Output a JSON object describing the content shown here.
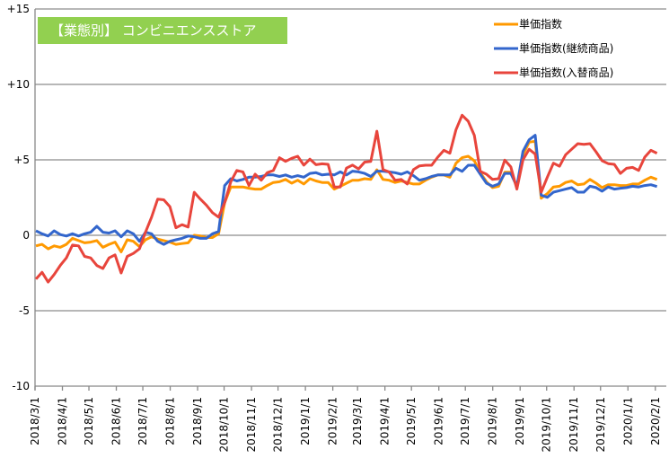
{
  "chart_data": {
    "type": "line",
    "title": "【業態別】 コンビニエンスストア",
    "xlabel": "",
    "ylabel": "",
    "ylim": [
      -10,
      15
    ],
    "yticks": [
      "+15",
      "+10",
      "+5",
      "0",
      "-5",
      "-10"
    ],
    "ytick_values": [
      15,
      10,
      5,
      0,
      -5,
      -10
    ],
    "x_start": "2018-03-01",
    "x_step_days": 7,
    "xtick_labels": [
      "2018/3/1",
      "2018/4/1",
      "2018/5/1",
      "2018/6/1",
      "2018/7/1",
      "2018/8/1",
      "2018/9/1",
      "2018/10/1",
      "2018/11/1",
      "2018/12/1",
      "2019/1/1",
      "2019/2/1",
      "2019/3/1",
      "2019/4/1",
      "2019/5/1",
      "2019/6/1",
      "2019/7/1",
      "2019/8/1",
      "2019/9/1",
      "2019/10/1",
      "2019/11/1",
      "2019/12/1",
      "2020/1/1",
      "2020/2/1"
    ],
    "grid": true,
    "legend_placement": "top-right",
    "series": [
      {
        "name": "単価指数",
        "color": "#FF9900",
        "values": [
          -0.7,
          -0.6,
          -0.9,
          -0.7,
          -0.8,
          -0.6,
          -0.2,
          -0.35,
          -0.5,
          -0.45,
          -0.35,
          -0.8,
          -0.6,
          -0.45,
          -1.1,
          -0.3,
          -0.4,
          -0.75,
          -0.3,
          -0.1,
          -0.25,
          -0.35,
          -0.45,
          -0.6,
          -0.55,
          -0.5,
          0.0,
          -0.05,
          -0.15,
          -0.15,
          0.1,
          2.16,
          3.2,
          3.2,
          3.2,
          3.12,
          3.06,
          3.06,
          3.3,
          3.5,
          3.55,
          3.7,
          3.45,
          3.65,
          3.4,
          3.75,
          3.6,
          3.5,
          3.5,
          3.06,
          3.25,
          3.45,
          3.65,
          3.65,
          3.75,
          3.7,
          4.34,
          3.7,
          3.65,
          3.5,
          3.6,
          3.5,
          3.4,
          3.4,
          3.65,
          3.85,
          4.0,
          4.0,
          3.85,
          4.78,
          5.14,
          5.24,
          4.94,
          4.15,
          3.55,
          3.16,
          3.25,
          4.18,
          4.18,
          3.2,
          5.34,
          6.17,
          6.23,
          2.46,
          2.76,
          3.2,
          3.25,
          3.5,
          3.6,
          3.35,
          3.4,
          3.7,
          3.45,
          3.16,
          3.35,
          3.35,
          3.3,
          3.3,
          3.4,
          3.4,
          3.65,
          3.85,
          3.7
        ]
      },
      {
        "name": "単価指数(継続商品)",
        "color": "#3366CC",
        "values": [
          0.3,
          0.1,
          -0.05,
          0.3,
          0.05,
          -0.05,
          0.1,
          -0.05,
          0.1,
          0.2,
          0.6,
          0.2,
          0.15,
          0.3,
          -0.1,
          0.3,
          0.1,
          -0.4,
          0.2,
          0.1,
          -0.4,
          -0.6,
          -0.4,
          -0.3,
          -0.2,
          -0.05,
          -0.1,
          -0.2,
          -0.2,
          0.1,
          0.25,
          3.3,
          3.75,
          3.6,
          3.7,
          3.85,
          3.85,
          3.9,
          4.0,
          4.0,
          3.9,
          4.0,
          3.85,
          3.95,
          3.85,
          4.1,
          4.15,
          4.0,
          4.05,
          4.0,
          4.2,
          4.0,
          4.25,
          4.2,
          4.1,
          3.9,
          4.25,
          4.25,
          4.2,
          4.15,
          4.05,
          4.2,
          3.95,
          3.65,
          3.75,
          3.9,
          4.0,
          4.0,
          4.0,
          4.44,
          4.24,
          4.64,
          4.64,
          4.05,
          3.45,
          3.25,
          3.4,
          4.1,
          4.1,
          3.25,
          5.57,
          6.33,
          6.63,
          2.66,
          2.52,
          2.86,
          2.96,
          3.06,
          3.16,
          2.86,
          2.86,
          3.25,
          3.16,
          2.92,
          3.2,
          3.06,
          3.12,
          3.16,
          3.25,
          3.2,
          3.3,
          3.35,
          3.23
        ]
      },
      {
        "name": "単価指数(入替商品)",
        "color": "#E8453C",
        "values": [
          -2.9,
          -2.45,
          -3.1,
          -2.6,
          -2.0,
          -1.5,
          -0.65,
          -0.7,
          -1.4,
          -1.5,
          -2.0,
          -2.2,
          -1.5,
          -1.3,
          -2.5,
          -1.4,
          -1.2,
          -0.9,
          0.2,
          1.2,
          2.4,
          2.35,
          1.9,
          0.5,
          0.7,
          0.55,
          2.85,
          2.4,
          2.0,
          1.5,
          1.2,
          2.16,
          3.55,
          4.3,
          4.2,
          3.3,
          4.05,
          3.65,
          4.15,
          4.3,
          5.14,
          4.9,
          5.1,
          5.24,
          4.65,
          5.05,
          4.68,
          4.74,
          4.7,
          3.2,
          3.2,
          4.45,
          4.65,
          4.4,
          4.85,
          4.9,
          6.9,
          4.35,
          4.2,
          3.65,
          3.7,
          3.4,
          4.35,
          4.6,
          4.64,
          4.64,
          5.18,
          5.63,
          5.44,
          7.0,
          7.96,
          7.56,
          6.63,
          4.24,
          4.05,
          3.7,
          3.75,
          4.98,
          4.54,
          3.06,
          5.0,
          5.7,
          5.38,
          2.86,
          3.85,
          4.78,
          4.58,
          5.34,
          5.7,
          6.07,
          6.03,
          6.07,
          5.53,
          4.94,
          4.75,
          4.7,
          4.1,
          4.44,
          4.5,
          4.3,
          5.18,
          5.63,
          5.44
        ]
      }
    ]
  }
}
